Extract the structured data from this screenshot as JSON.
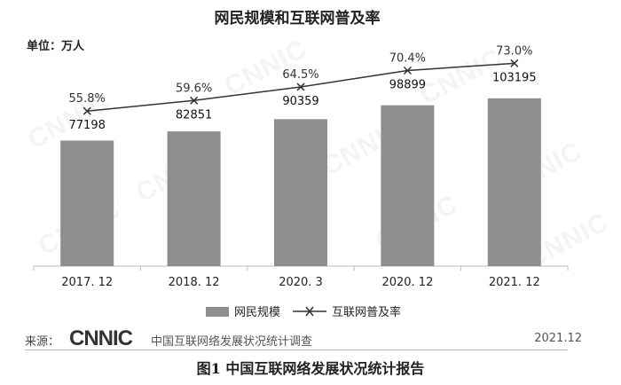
{
  "chart_data": {
    "type": "bar",
    "title": "网民规模和互联网普及率",
    "unit_label": "单位：万人",
    "categories": [
      "2017. 12",
      "2018. 12",
      "2020. 3",
      "2020. 12",
      "2021. 12"
    ],
    "series": [
      {
        "name": "网民规模",
        "type": "bar",
        "values": [
          77198,
          82851,
          90359,
          98899,
          103195
        ],
        "value_labels": [
          "77198",
          "82851",
          "90359",
          "98899",
          "103195"
        ],
        "color": "#8e8e8e"
      },
      {
        "name": "互联网普及率",
        "type": "line",
        "values": [
          55.8,
          59.6,
          64.5,
          70.4,
          73.0
        ],
        "value_labels": [
          "55.8%",
          "59.6%",
          "64.5%",
          "70.4%",
          "73.0%"
        ],
        "color": "#333333",
        "marker": "x"
      }
    ],
    "y_bar_range": [
      0,
      120000
    ],
    "y_line_range": [
      0,
      83
    ],
    "legend_position": "bottom",
    "grid": false
  },
  "source": {
    "label": "来源：",
    "logo": "CNNIC",
    "text": "中国互联网络发展状况统计调查",
    "date": "2021.12"
  },
  "watermark": "CNNIC",
  "caption": "图1  中国互联网络发展状况统计报告"
}
